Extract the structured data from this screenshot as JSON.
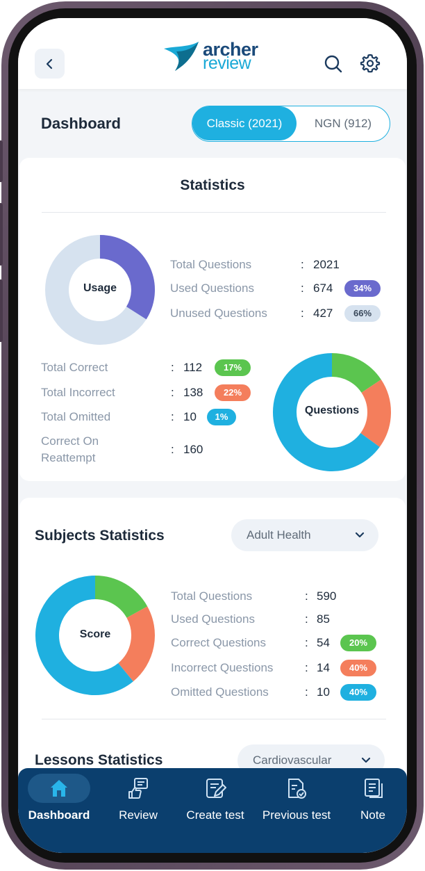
{
  "header": {
    "logo_line1": "archer",
    "logo_line2": "review"
  },
  "dashboard": {
    "title": "Dashboard",
    "toggle": {
      "active": "Classic (2021)",
      "inactive": "NGN (912)"
    }
  },
  "statistics": {
    "title": "Statistics",
    "usage": {
      "center_label": "Usage",
      "rows": [
        {
          "label": "Total Questions",
          "value": "2021"
        },
        {
          "label": "Used Questions",
          "value": "674",
          "badge": "34%"
        },
        {
          "label": "Unused Questions",
          "value": "427",
          "badge": "66%"
        }
      ]
    },
    "questions": {
      "center_label": "Questions",
      "rows": [
        {
          "label": "Total Correct",
          "value": "112",
          "badge": "17%"
        },
        {
          "label": "Total Incorrect",
          "value": "138",
          "badge": "22%"
        },
        {
          "label": "Total Omitted",
          "value": "10",
          "badge": "1%"
        },
        {
          "label_line1": "Correct On",
          "label_line2": "Reattempt",
          "value": "160"
        }
      ]
    }
  },
  "subjects": {
    "title": "Subjects Statistics",
    "dropdown": "Adult Health",
    "score_label": "Score",
    "rows": [
      {
        "label": "Total Questions",
        "value": "590"
      },
      {
        "label": "Used Questions",
        "value": "85"
      },
      {
        "label": "Correct Questions",
        "value": "54",
        "badge": "20%"
      },
      {
        "label": "Incorrect Questions",
        "value": "14",
        "badge": "40%"
      },
      {
        "label": "Omitted Questions",
        "value": "10",
        "badge": "40%"
      }
    ]
  },
  "lessons": {
    "title": "Lessons Statistics",
    "dropdown": "Cardiovascular"
  },
  "colon": ":",
  "colors": {
    "accent": "#1fb0e0",
    "nav_bg": "#0b3f6e",
    "used": "#6a6acd",
    "unused": "#d6e2ef",
    "correct": "#5bc54f",
    "incorrect": "#f47e5c",
    "omitted": "#1fb0e0"
  },
  "nav": [
    {
      "label": "Dashboard",
      "icon": "home-icon",
      "active": true
    },
    {
      "label": "Review",
      "icon": "review-icon"
    },
    {
      "label": "Create test",
      "icon": "create-test-icon"
    },
    {
      "label": "Previous test",
      "icon": "previous-test-icon"
    },
    {
      "label": "Note",
      "icon": "note-icon"
    }
  ]
}
